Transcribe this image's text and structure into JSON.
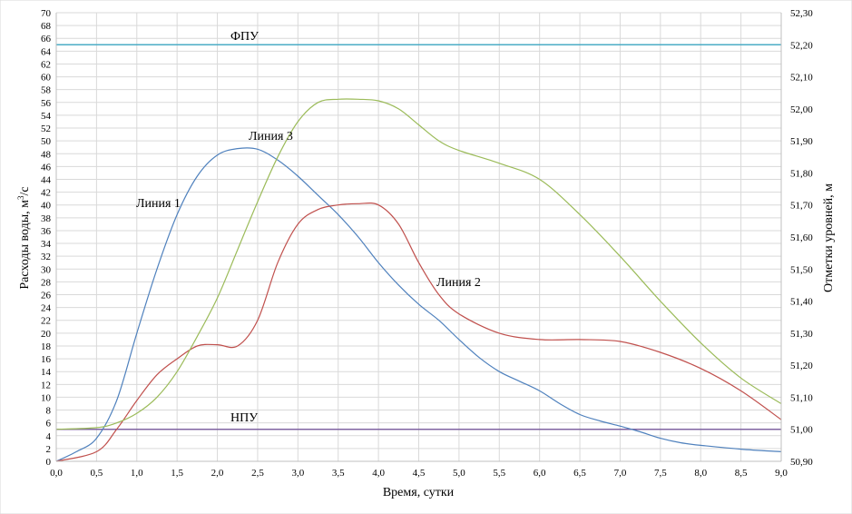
{
  "chart_data": {
    "type": "line",
    "xlabel": "Время, сутки",
    "ylabel": "Расходы воды, м³/с",
    "ylabel_main": "Расходы воды, м",
    "ylabel_sup": "3",
    "ylabel_tail": "/с",
    "y2label": "Отметки уровней, м",
    "xlim": [
      0,
      9
    ],
    "ylim": [
      0,
      70
    ],
    "y2lim": [
      50.9,
      52.3
    ],
    "x_ticks": [
      "0,0",
      "0,5",
      "1,0",
      "1,5",
      "2,0",
      "2,5",
      "3,0",
      "3,5",
      "4,0",
      "4,5",
      "5,0",
      "5,5",
      "6,0",
      "6,5",
      "7,0",
      "7,5",
      "8,0",
      "8,5",
      "9,0"
    ],
    "y_ticks": [
      "0",
      "2",
      "4",
      "6",
      "8",
      "10",
      "12",
      "14",
      "16",
      "18",
      "20",
      "22",
      "24",
      "26",
      "28",
      "30",
      "32",
      "34",
      "36",
      "38",
      "40",
      "42",
      "44",
      "46",
      "48",
      "50",
      "52",
      "54",
      "56",
      "58",
      "60",
      "62",
      "64",
      "66",
      "68",
      "70"
    ],
    "y2_ticks": [
      "50,90",
      "51,00",
      "51,10",
      "51,20",
      "51,30",
      "51,40",
      "51,50",
      "51,60",
      "51,70",
      "51,80",
      "51,90",
      "52,00",
      "52,10",
      "52,20",
      "52,30"
    ],
    "grid": true,
    "series": [
      {
        "name": "Линия 1",
        "axis": "left",
        "color": "#4f81bd",
        "x": [
          0,
          0.25,
          0.5,
          0.75,
          1.0,
          1.25,
          1.5,
          1.75,
          2.0,
          2.25,
          2.5,
          2.75,
          3.0,
          3.25,
          3.5,
          3.75,
          4.0,
          4.25,
          4.5,
          4.75,
          5.0,
          5.25,
          5.5,
          5.75,
          6.0,
          6.25,
          6.5,
          6.75,
          7.0,
          7.25,
          7.5,
          7.75,
          8.0,
          8.5,
          9.0
        ],
        "y": [
          0,
          1.5,
          3.6,
          9.5,
          20,
          30,
          38.5,
          44.5,
          47.8,
          48.8,
          48.7,
          47,
          44.5,
          41.5,
          38.5,
          35,
          31,
          27.5,
          24.5,
          22,
          19,
          16.2,
          14,
          12.5,
          11,
          9,
          7.3,
          6.3,
          5.5,
          4.6,
          3.6,
          2.9,
          2.5,
          1.9,
          1.5
        ]
      },
      {
        "name": "Линия 2",
        "axis": "left",
        "color": "#c0504d",
        "x": [
          0,
          0.5,
          0.75,
          1.0,
          1.25,
          1.5,
          1.75,
          2.0,
          2.25,
          2.5,
          2.75,
          3.0,
          3.25,
          3.5,
          3.75,
          4.0,
          4.25,
          4.5,
          4.75,
          5.0,
          5.5,
          6.0,
          6.5,
          7.0,
          7.5,
          8.0,
          8.5,
          9.0
        ],
        "y": [
          0,
          1.5,
          5,
          9.5,
          13.5,
          16,
          18,
          18.2,
          18,
          22,
          31,
          37,
          39.3,
          40,
          40.2,
          40,
          37,
          31,
          26,
          23,
          20,
          19,
          19,
          18.7,
          17,
          14.5,
          11,
          6.5
        ]
      },
      {
        "name": "Линия 3",
        "axis": "right",
        "color": "#9bbb59",
        "x": [
          0,
          0.5,
          0.75,
          1.0,
          1.25,
          1.5,
          1.75,
          2.0,
          2.25,
          2.5,
          2.75,
          3.0,
          3.25,
          3.5,
          3.75,
          4.0,
          4.25,
          4.5,
          4.75,
          5.0,
          5.5,
          6.0,
          6.5,
          7.0,
          7.5,
          8.0,
          8.5,
          9.0
        ],
        "y": [
          51.0,
          51.005,
          51.02,
          51.05,
          51.1,
          51.18,
          51.29,
          51.41,
          51.56,
          51.71,
          51.85,
          51.96,
          52.02,
          52.03,
          52.03,
          52.025,
          52.0,
          51.95,
          51.9,
          51.87,
          51.83,
          51.78,
          51.67,
          51.54,
          51.4,
          51.27,
          51.16,
          51.08
        ]
      }
    ],
    "hlines": [
      {
        "name": "ФПУ",
        "axis": "left",
        "value": 65,
        "color": "#4bacc6"
      },
      {
        "name": "НПУ",
        "axis": "left",
        "value": 5,
        "color": "#8064a2"
      }
    ],
    "annotations": {
      "line1": "Линия 1",
      "line2": "Линия 2",
      "line3": "Линия 3",
      "fpu": "ФПУ",
      "npu": "НПУ"
    }
  }
}
